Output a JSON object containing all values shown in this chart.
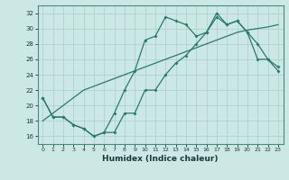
{
  "xlabel": "Humidex (Indice chaleur)",
  "ylabel": "",
  "bg_color": "#cce8e4",
  "line_color": "#2a7a6a",
  "grid_color": "#aacfcc",
  "xlim": [
    -0.5,
    23.5
  ],
  "ylim": [
    15,
    33
  ],
  "yticks": [
    16,
    18,
    20,
    22,
    24,
    26,
    28,
    30,
    32
  ],
  "xticks": [
    0,
    1,
    2,
    3,
    4,
    5,
    6,
    7,
    8,
    9,
    10,
    11,
    12,
    13,
    14,
    15,
    16,
    17,
    18,
    19,
    20,
    21,
    22,
    23
  ],
  "line1_x": [
    0,
    1,
    2,
    3,
    4,
    5,
    6,
    7,
    8,
    9,
    10,
    11,
    12,
    13,
    14,
    15,
    16,
    17,
    18,
    19,
    20,
    21,
    22,
    23
  ],
  "line1_y": [
    18.0,
    19.0,
    20.0,
    21.0,
    22.0,
    22.5,
    23.0,
    23.5,
    24.0,
    24.5,
    25.0,
    25.5,
    26.0,
    26.5,
    27.0,
    27.5,
    28.0,
    28.5,
    29.0,
    29.5,
    29.8,
    30.0,
    30.2,
    30.5
  ],
  "line2_x": [
    0,
    1,
    2,
    3,
    4,
    5,
    6,
    7,
    8,
    9,
    10,
    11,
    12,
    13,
    14,
    15,
    16,
    17,
    18,
    19,
    20,
    21,
    22,
    23
  ],
  "line2_y": [
    21,
    18.5,
    18.5,
    17.5,
    17,
    16,
    16.5,
    19,
    22,
    24.5,
    28.5,
    29,
    31.5,
    31,
    30.5,
    29,
    29.5,
    32,
    30.5,
    31,
    29.5,
    28,
    26,
    25
  ],
  "line3_x": [
    0,
    1,
    2,
    3,
    4,
    5,
    6,
    7,
    8,
    9,
    10,
    11,
    12,
    13,
    14,
    15,
    16,
    17,
    18,
    19,
    20,
    21,
    22,
    23
  ],
  "line3_y": [
    21,
    18.5,
    18.5,
    17.5,
    17,
    16,
    16.5,
    16.5,
    19,
    19,
    22,
    22,
    24,
    25.5,
    26.5,
    28,
    29.5,
    31.5,
    30.5,
    31,
    29.5,
    26,
    26,
    24.5
  ]
}
